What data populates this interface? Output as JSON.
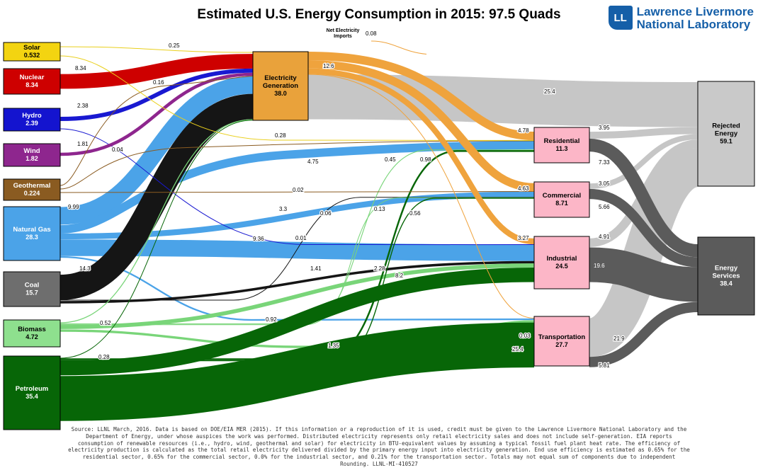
{
  "header": {
    "title": "Estimated U.S. Energy Consumption in 2015: 97.5 Quads",
    "logo": {
      "mark": "LL",
      "line1": "Lawrence Livermore",
      "line2": "National Laboratory"
    }
  },
  "annotations": {
    "net_imports_line1": "Net Electricity",
    "net_imports_line2": "Imports",
    "net_imports_value": "0.08",
    "electricity_out_value": "12.6"
  },
  "footer": {
    "text": "Source: LLNL March, 2016. Data is based on DOE/EIA MER (2015). If this information or a reproduction of it is used, credit must be given to the Lawrence Livermore National Laboratory and the Department of Energy, under whose auspices the work was performed. Distributed electricity represents only retail electricity sales and does not include self-generation. EIA reports consumption of renewable resources (i.e., hydro, wind, geothermal and solar) for electricity in BTU-equivalent values by assuming a typical fossil fuel plant heat rate. The efficiency of electricity production is calculated as the total retail electricity delivered divided by the primary energy input into electricity generation. End use efficiency is estimated as 0.65% for the residential sector, 0.65% for the commercial sector, 0.0% for the industrial sector, and 0.21% for the transportation sector. Totals may not equal sum of components due to independent Rounding. LLNL-MI-410527"
  },
  "chart_data": {
    "type": "sankey",
    "units": "Quads",
    "total_quads": 97.5,
    "title": "Estimated U.S. Energy Consumption in 2015: 97.5 Quads",
    "nodes": [
      {
        "id": "solar",
        "label": "Solar",
        "value": "0.532",
        "color": "#f3d411",
        "text": "#000000"
      },
      {
        "id": "nuclear",
        "label": "Nuclear",
        "value": "8.34",
        "color": "#ce0000",
        "text": "#ffffff"
      },
      {
        "id": "hydro",
        "label": "Hydro",
        "value": "2.39",
        "color": "#1414cf",
        "text": "#ffffff"
      },
      {
        "id": "wind",
        "label": "Wind",
        "value": "1.82",
        "color": "#8e268e",
        "text": "#ffffff"
      },
      {
        "id": "geothermal",
        "label": "Geothermal",
        "value": "0.224",
        "color": "#8a5b21",
        "text": "#ffffff"
      },
      {
        "id": "natural_gas",
        "label": "Natural Gas",
        "value": "28.3",
        "color": "#4ba3e8",
        "text": "#ffffff"
      },
      {
        "id": "coal",
        "label": "Coal",
        "value": "15.7",
        "color": "#6e6e6e",
        "text": "#ffffff"
      },
      {
        "id": "biomass",
        "label": "Biomass",
        "value": "4.72",
        "color": "#8ee08e",
        "text": "#000000"
      },
      {
        "id": "petroleum",
        "label": "Petroleum",
        "value": "35.4",
        "color": "#076607",
        "text": "#ffffff"
      },
      {
        "id": "electricity",
        "label": "Electricity Generation",
        "value": "38.0",
        "color": "#e9a23b",
        "text": "#000000"
      },
      {
        "id": "residential",
        "label": "Residential",
        "value": "11.3",
        "color": "#fcb6c7",
        "text": "#000000"
      },
      {
        "id": "commercial",
        "label": "Commercial",
        "value": "8.71",
        "color": "#fcb6c7",
        "text": "#000000"
      },
      {
        "id": "industrial",
        "label": "Industrial",
        "value": "24.5",
        "color": "#fcb6c7",
        "text": "#000000"
      },
      {
        "id": "transportation",
        "label": "Transportation",
        "value": "27.7",
        "color": "#fcb6c7",
        "text": "#000000"
      },
      {
        "id": "rejected",
        "label": "Rejected Energy",
        "value": "59.1",
        "color": "#c9c9c9",
        "text": "#000000"
      },
      {
        "id": "services",
        "label": "Energy Services",
        "value": "38.4",
        "color": "#5b5b5b",
        "text": "#ffffff"
      }
    ],
    "links": [
      {
        "source": "solar",
        "target": "electricity",
        "value": 0.25,
        "label": "0.25",
        "color": "#e9cf1c"
      },
      {
        "source": "solar",
        "target": "residential",
        "value": 0.28,
        "label": "0.28",
        "color": "#e9cf1c"
      },
      {
        "source": "nuclear",
        "target": "electricity",
        "value": 8.34,
        "label": "8.34",
        "color": "#ce0000"
      },
      {
        "source": "hydro",
        "target": "electricity",
        "value": 2.38,
        "label": "2.38",
        "color": "#1919d1"
      },
      {
        "source": "hydro",
        "target": "industrial",
        "value": 0.01,
        "label": "0.01",
        "color": "#1919d1"
      },
      {
        "source": "wind",
        "target": "electricity",
        "value": 1.81,
        "label": "1.81",
        "color": "#8e268e"
      },
      {
        "source": "geothermal",
        "target": "electricity",
        "value": 0.16,
        "label": "0.16",
        "color": "#8a5b21"
      },
      {
        "source": "geothermal",
        "target": "residential",
        "value": 0.04,
        "label": "0.04",
        "color": "#8a5b21"
      },
      {
        "source": "geothermal",
        "target": "commercial",
        "value": 0.02,
        "label": "0.02",
        "color": "#8a5b21"
      },
      {
        "source": "natural_gas",
        "target": "electricity",
        "value": 9.99,
        "label": "9.99",
        "color": "#4ba3e8"
      },
      {
        "source": "natural_gas",
        "target": "residential",
        "value": 4.75,
        "label": "4.75",
        "color": "#4ba3e8"
      },
      {
        "source": "natural_gas",
        "target": "commercial",
        "value": 3.3,
        "label": "3.3",
        "color": "#4ba3e8"
      },
      {
        "source": "natural_gas",
        "target": "industrial",
        "value": 9.36,
        "label": "9.36",
        "color": "#4ba3e8"
      },
      {
        "source": "natural_gas",
        "target": "transportation",
        "value": 0.92,
        "label": "0.92",
        "color": "#4ba3e8"
      },
      {
        "source": "coal",
        "target": "electricity",
        "value": 14.3,
        "label": "14.3",
        "color": "#151515"
      },
      {
        "source": "coal",
        "target": "commercial",
        "value": 0.06,
        "label": "0.06",
        "color": "#151515"
      },
      {
        "source": "coal",
        "target": "industrial",
        "value": 1.41,
        "label": "1.41",
        "color": "#151515"
      },
      {
        "source": "biomass",
        "target": "electricity",
        "value": 0.52,
        "label": "0.52",
        "color": "#79d579"
      },
      {
        "source": "biomass",
        "target": "residential",
        "value": 0.45,
        "label": "0.45",
        "color": "#79d579"
      },
      {
        "source": "biomass",
        "target": "commercial",
        "value": 0.13,
        "label": "0.13",
        "color": "#79d579"
      },
      {
        "source": "biomass",
        "target": "industrial",
        "value": 2.28,
        "label": "2.28",
        "color": "#79d579"
      },
      {
        "source": "biomass",
        "target": "transportation",
        "value": 1.35,
        "label": "1.35",
        "color": "#79d579"
      },
      {
        "source": "petroleum",
        "target": "electricity",
        "value": 0.28,
        "label": "0.28",
        "color": "#076607"
      },
      {
        "source": "petroleum",
        "target": "residential",
        "value": 0.98,
        "label": "0.98",
        "color": "#076607"
      },
      {
        "source": "petroleum",
        "target": "commercial",
        "value": 0.56,
        "label": "0.56",
        "color": "#076607"
      },
      {
        "source": "petroleum",
        "target": "industrial",
        "value": 8.2,
        "label": "8.2",
        "color": "#076607"
      },
      {
        "source": "petroleum",
        "target": "transportation",
        "value": 25.4,
        "label": "25.4",
        "color": "#076607"
      },
      {
        "source": "imports",
        "target": "electricity",
        "value": 0.08,
        "label": "0.08",
        "color": "#efa33d"
      },
      {
        "source": "electricity",
        "target": "rejected",
        "value": 25.4,
        "label": "25.4",
        "color": "#c6c6c6"
      },
      {
        "source": "electricity",
        "target": "residential",
        "value": 4.78,
        "label": "4.78",
        "color": "#efa33d"
      },
      {
        "source": "electricity",
        "target": "commercial",
        "value": 4.63,
        "label": "4.63",
        "color": "#efa33d"
      },
      {
        "source": "electricity",
        "target": "industrial",
        "value": 3.27,
        "label": "3.27",
        "color": "#efa33d"
      },
      {
        "source": "electricity",
        "target": "transportation",
        "value": 0.03,
        "label": "0.03",
        "color": "#efa33d"
      },
      {
        "source": "residential",
        "target": "rejected",
        "value": 3.95,
        "label": "3.95",
        "color": "#c6c6c6"
      },
      {
        "source": "residential",
        "target": "services",
        "value": 7.33,
        "label": "7.33",
        "color": "#5b5b5b"
      },
      {
        "source": "commercial",
        "target": "rejected",
        "value": 3.05,
        "label": "3.05",
        "color": "#c6c6c6"
      },
      {
        "source": "commercial",
        "target": "services",
        "value": 5.66,
        "label": "5.66",
        "color": "#5b5b5b"
      },
      {
        "source": "industrial",
        "target": "rejected",
        "value": 4.91,
        "label": "4.91",
        "color": "#c6c6c6"
      },
      {
        "source": "industrial",
        "target": "services",
        "value": 19.6,
        "label": "19.6",
        "color": "#5b5b5b",
        "label_color": "#ffffff"
      },
      {
        "source": "transportation",
        "target": "rejected",
        "value": 21.9,
        "label": "21.9",
        "color": "#c6c6c6"
      },
      {
        "source": "transportation",
        "target": "services",
        "value": 5.81,
        "label": "5.81",
        "color": "#5b5b5b"
      }
    ]
  }
}
